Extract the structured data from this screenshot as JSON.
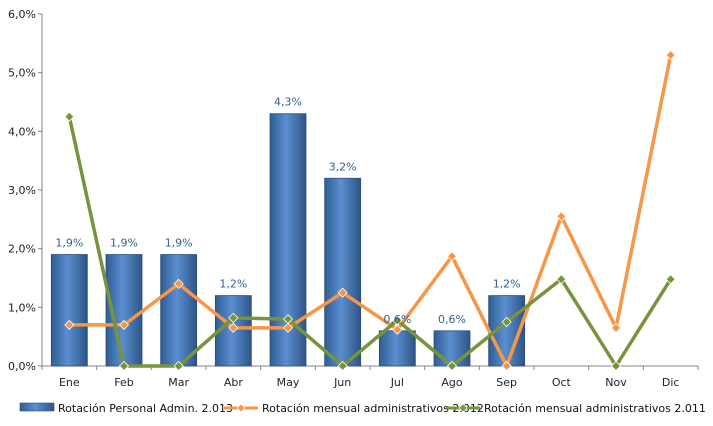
{
  "chart_data": {
    "type": "bar",
    "categories": [
      "Ene",
      "Feb",
      "Mar",
      "Abr",
      "May",
      "Jun",
      "Jul",
      "Ago",
      "Sep",
      "Oct",
      "Nov",
      "Dic"
    ],
    "ylim": [
      0,
      6
    ],
    "yticks": [
      "0,0%",
      "1,0%",
      "2,0%",
      "3,0%",
      "4,0%",
      "5,0%",
      "6,0%"
    ],
    "grid": false,
    "legend_position": "bottom",
    "series": [
      {
        "name": "Rotación Personal Admin. 2.013",
        "kind": "bar",
        "color": "#4f81bd",
        "values": [
          1.9,
          1.9,
          1.9,
          1.2,
          4.3,
          3.2,
          0.6,
          0.6,
          1.2,
          null,
          null,
          null
        ],
        "labels": [
          "1,9%",
          "1,9%",
          "1,9%",
          "1,2%",
          "4,3%",
          "3,2%",
          "0,6%",
          "0,6%",
          "1,2%",
          "",
          "",
          ""
        ]
      },
      {
        "name": "Rotación mensual administrativos 2.012",
        "kind": "line",
        "color": "#f79646",
        "values": [
          0.7,
          0.7,
          1.4,
          0.65,
          0.65,
          1.25,
          0.62,
          1.87,
          0.0,
          2.55,
          0.65,
          5.3
        ]
      },
      {
        "name": "Rotación mensual administrativos 2.011",
        "kind": "line",
        "color": "#77933c",
        "values": [
          4.25,
          0.0,
          0.0,
          0.82,
          0.8,
          0.0,
          0.78,
          0.0,
          0.75,
          1.48,
          0.0,
          1.48
        ]
      }
    ]
  }
}
